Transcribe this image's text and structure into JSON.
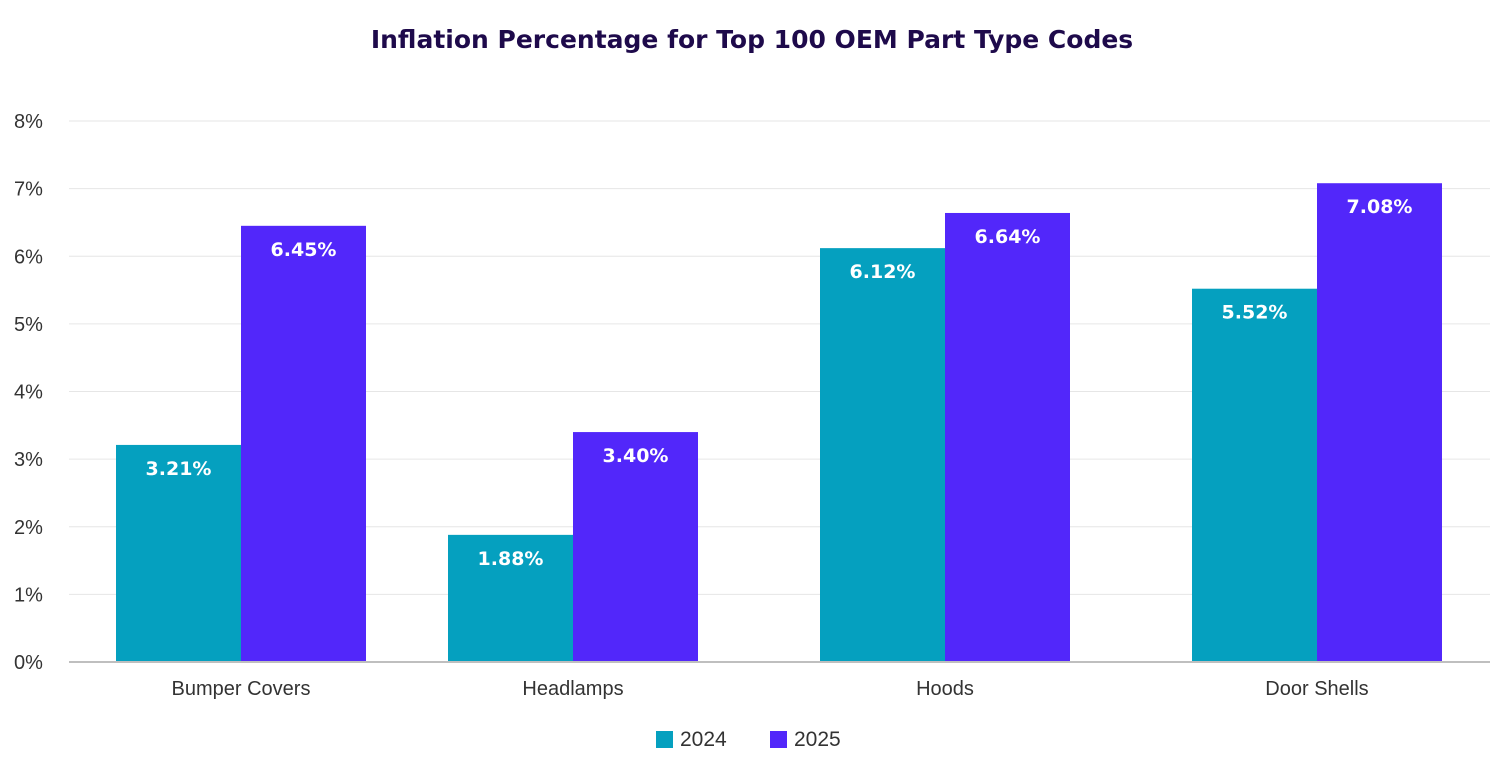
{
  "colors": {
    "series_2024": "#05A0BF",
    "series_2025": "#5227FA",
    "title": "#1E0A4B",
    "grid": "#E6E6E6",
    "axis": "#BFBFBF",
    "text": "#333333"
  },
  "chart_data": {
    "type": "bar",
    "title": "Inflation Percentage for Top 100 OEM Part Type Codes",
    "xlabel": "",
    "ylabel": "",
    "categories": [
      "Bumper Covers",
      "Headlamps",
      "Hoods",
      "Door Shells"
    ],
    "series": [
      {
        "name": "2024",
        "values": [
          3.21,
          1.88,
          6.12,
          5.52
        ],
        "labels": [
          "3.21%",
          "1.88%",
          "6.12%",
          "5.52%"
        ]
      },
      {
        "name": "2025",
        "values": [
          6.45,
          3.4,
          6.64,
          7.08
        ],
        "labels": [
          "6.45%",
          "3.40%",
          "6.64%",
          "7.08%"
        ]
      }
    ],
    "ylim": [
      0,
      8
    ],
    "yticks": [
      0,
      1,
      2,
      3,
      4,
      5,
      6,
      7,
      8
    ],
    "ytick_labels": [
      "0%",
      "1%",
      "2%",
      "3%",
      "4%",
      "5%",
      "6%",
      "7%",
      "8%"
    ],
    "grid": true,
    "legend_position": "bottom-center"
  }
}
